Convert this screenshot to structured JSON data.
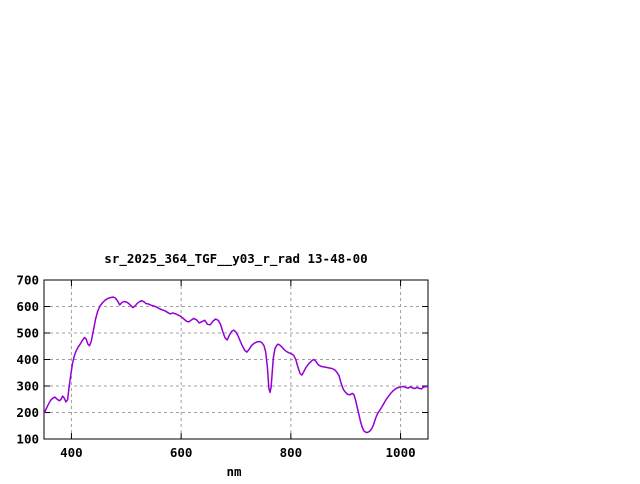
{
  "window": {
    "background": "#ffffff"
  },
  "chart_data": {
    "type": "line",
    "title": "sr_2025_364_TGF__y03_r_rad 13-48-00",
    "xlabel": "nm",
    "ylabel": "",
    "xlim": [
      350,
      1050
    ],
    "ylim": [
      100,
      700
    ],
    "x_ticks": [
      400,
      600,
      800,
      1000
    ],
    "x_tick_labels": [
      "400",
      "600",
      "800",
      "1000"
    ],
    "y_ticks": [
      100,
      200,
      300,
      400,
      500,
      600,
      700
    ],
    "y_tick_labels": [
      "100",
      "200",
      "300",
      "400",
      "500",
      "600",
      "700"
    ],
    "grid": true,
    "legend": "none",
    "grid_color": "#a0a0a0",
    "border_color": "#000000",
    "line_color": "#9400d3",
    "points": [
      [
        350,
        196
      ],
      [
        354,
        214
      ],
      [
        358,
        231
      ],
      [
        362,
        246
      ],
      [
        366,
        254
      ],
      [
        370,
        258
      ],
      [
        374,
        250
      ],
      [
        378,
        244
      ],
      [
        381,
        250
      ],
      [
        384,
        262
      ],
      [
        387,
        254
      ],
      [
        390,
        240
      ],
      [
        393,
        248
      ],
      [
        396,
        300
      ],
      [
        399,
        345
      ],
      [
        402,
        385
      ],
      [
        405,
        412
      ],
      [
        408,
        430
      ],
      [
        412,
        446
      ],
      [
        416,
        458
      ],
      [
        420,
        472
      ],
      [
        424,
        483
      ],
      [
        427,
        477
      ],
      [
        430,
        458
      ],
      [
        433,
        452
      ],
      [
        436,
        468
      ],
      [
        440,
        510
      ],
      [
        444,
        553
      ],
      [
        448,
        583
      ],
      [
        452,
        602
      ],
      [
        457,
        615
      ],
      [
        462,
        625
      ],
      [
        467,
        631
      ],
      [
        472,
        634
      ],
      [
        476,
        636
      ],
      [
        480,
        632
      ],
      [
        484,
        621
      ],
      [
        488,
        606
      ],
      [
        492,
        615
      ],
      [
        496,
        619
      ],
      [
        500,
        617
      ],
      [
        504,
        612
      ],
      [
        508,
        604
      ],
      [
        512,
        596
      ],
      [
        516,
        602
      ],
      [
        520,
        612
      ],
      [
        524,
        618
      ],
      [
        528,
        622
      ],
      [
        532,
        618
      ],
      [
        536,
        611
      ],
      [
        540,
        610
      ],
      [
        545,
        605
      ],
      [
        550,
        602
      ],
      [
        555,
        598
      ],
      [
        560,
        592
      ],
      [
        565,
        588
      ],
      [
        570,
        584
      ],
      [
        575,
        578
      ],
      [
        580,
        572
      ],
      [
        585,
        576
      ],
      [
        590,
        572
      ],
      [
        595,
        567
      ],
      [
        600,
        562
      ],
      [
        605,
        553
      ],
      [
        610,
        544
      ],
      [
        614,
        542
      ],
      [
        618,
        548
      ],
      [
        623,
        555
      ],
      [
        628,
        550
      ],
      [
        633,
        538
      ],
      [
        638,
        543
      ],
      [
        643,
        548
      ],
      [
        648,
        533
      ],
      [
        653,
        531
      ],
      [
        658,
        545
      ],
      [
        663,
        553
      ],
      [
        668,
        547
      ],
      [
        672,
        532
      ],
      [
        676,
        505
      ],
      [
        680,
        482
      ],
      [
        684,
        474
      ],
      [
        688,
        492
      ],
      [
        692,
        506
      ],
      [
        696,
        511
      ],
      [
        700,
        503
      ],
      [
        704,
        488
      ],
      [
        708,
        468
      ],
      [
        712,
        450
      ],
      [
        716,
        434
      ],
      [
        720,
        428
      ],
      [
        724,
        439
      ],
      [
        728,
        452
      ],
      [
        733,
        461
      ],
      [
        738,
        466
      ],
      [
        743,
        468
      ],
      [
        747,
        464
      ],
      [
        751,
        452
      ],
      [
        754,
        430
      ],
      [
        757,
        375
      ],
      [
        760,
        290
      ],
      [
        762,
        276
      ],
      [
        764,
        295
      ],
      [
        766,
        350
      ],
      [
        768,
        405
      ],
      [
        771,
        440
      ],
      [
        774,
        453
      ],
      [
        777,
        458
      ],
      [
        781,
        453
      ],
      [
        785,
        444
      ],
      [
        789,
        435
      ],
      [
        793,
        429
      ],
      [
        797,
        425
      ],
      [
        801,
        422
      ],
      [
        805,
        416
      ],
      [
        809,
        400
      ],
      [
        813,
        370
      ],
      [
        817,
        346
      ],
      [
        820,
        341
      ],
      [
        823,
        352
      ],
      [
        827,
        368
      ],
      [
        831,
        380
      ],
      [
        835,
        389
      ],
      [
        839,
        397
      ],
      [
        842,
        400
      ],
      [
        846,
        392
      ],
      [
        850,
        380
      ],
      [
        855,
        374
      ],
      [
        860,
        372
      ],
      [
        865,
        370
      ],
      [
        870,
        368
      ],
      [
        875,
        366
      ],
      [
        880,
        361
      ],
      [
        884,
        352
      ],
      [
        888,
        338
      ],
      [
        892,
        308
      ],
      [
        896,
        286
      ],
      [
        900,
        275
      ],
      [
        904,
        268
      ],
      [
        908,
        267
      ],
      [
        912,
        272
      ],
      [
        915,
        268
      ],
      [
        918,
        246
      ],
      [
        921,
        220
      ],
      [
        924,
        193
      ],
      [
        927,
        166
      ],
      [
        930,
        145
      ],
      [
        933,
        131
      ],
      [
        936,
        126
      ],
      [
        939,
        124
      ],
      [
        942,
        127
      ],
      [
        945,
        132
      ],
      [
        948,
        141
      ],
      [
        951,
        155
      ],
      [
        954,
        175
      ],
      [
        958,
        196
      ],
      [
        962,
        208
      ],
      [
        966,
        221
      ],
      [
        970,
        236
      ],
      [
        974,
        250
      ],
      [
        978,
        261
      ],
      [
        982,
        272
      ],
      [
        986,
        281
      ],
      [
        990,
        288
      ],
      [
        994,
        293
      ],
      [
        998,
        295
      ],
      [
        1002,
        297
      ],
      [
        1006,
        298
      ],
      [
        1010,
        294
      ],
      [
        1014,
        292
      ],
      [
        1018,
        297
      ],
      [
        1022,
        293
      ],
      [
        1026,
        290
      ],
      [
        1030,
        295
      ],
      [
        1034,
        291
      ],
      [
        1038,
        289
      ],
      [
        1042,
        296
      ],
      [
        1046,
        298
      ],
      [
        1050,
        297
      ]
    ]
  }
}
